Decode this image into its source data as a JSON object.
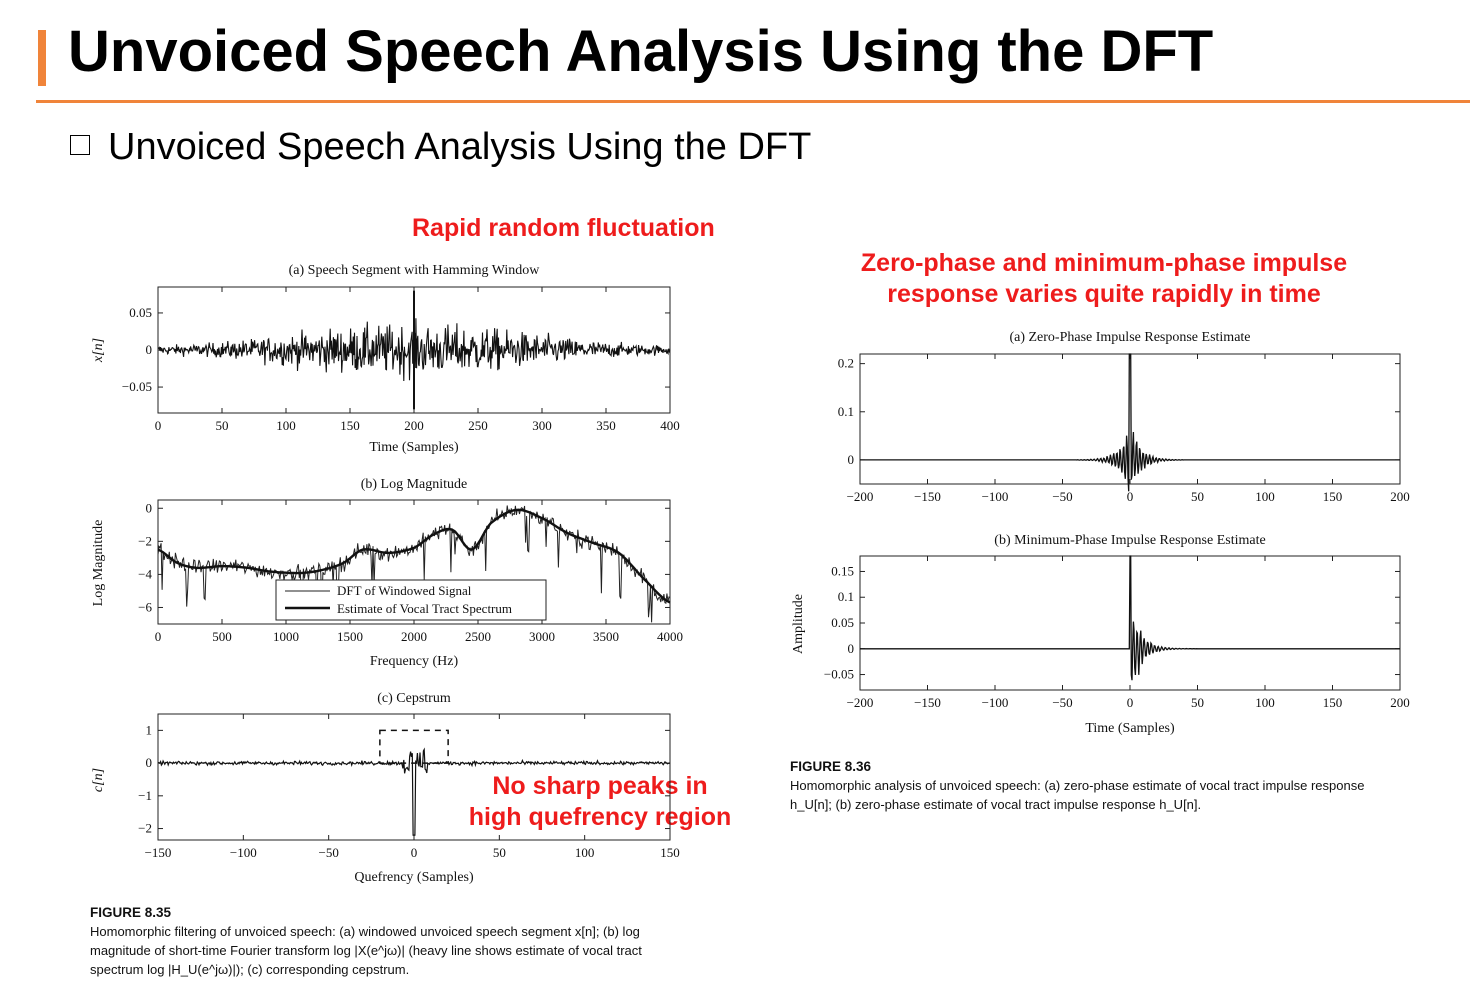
{
  "header": {
    "title": "Unvoiced Speech Analysis Using the DFT",
    "accent_color": "#f0843a"
  },
  "bullet": {
    "icon": "square-bullet-icon",
    "text": "Unvoiced Speech Analysis Using the DFT"
  },
  "annotations": {
    "color": "#ee1c1c",
    "rapid": "Rapid random fluctuation",
    "phase_line1": "Zero-phase and minimum-phase impulse",
    "phase_line2": "response varies quite rapidly in time",
    "peaks_line1": "No sharp peaks in",
    "peaks_line2": "high quefrency region"
  },
  "figure835": {
    "label": "FIGURE 8.35",
    "caption": "Homomorphic filtering of unvoiced speech: (a) windowed unvoiced speech segment x[n]; (b) log magnitude of short-time Fourier transform log |X(e^jω)| (heavy line shows estimate of vocal tract spectrum log |H_U(e^jω)|); (c) corresponding cepstrum."
  },
  "figure836": {
    "label": "FIGURE 8.36",
    "caption": "Homomorphic analysis of unvoiced speech: (a) zero-phase estimate of vocal tract impulse response h_U[n]; (b) zero-phase estimate of vocal tract impulse response h_U[n]."
  },
  "chart_data": [
    {
      "id": "speech-segment",
      "type": "line",
      "title": "(a) Speech Segment with Hamming Window",
      "xlabel": "Time (Samples)",
      "ylabel": "x[n]",
      "xlim": [
        0,
        400
      ],
      "ylim": [
        -0.085,
        0.085
      ],
      "xticks": [
        0,
        50,
        100,
        150,
        200,
        250,
        300,
        350,
        400
      ],
      "yticks": [
        0.05,
        0,
        -0.05
      ],
      "yticklabels": [
        "0.05",
        "0",
        "−0.05"
      ],
      "envelope_peak_x": 200,
      "envelope_peak_y": 0.08,
      "description_values": "noise-like windowed signal, amplitude largest near n=200"
    },
    {
      "id": "log-magnitude",
      "type": "line",
      "title": "(b) Log Magnitude",
      "xlabel": "Frequency (Hz)",
      "ylabel": "Log Magnitude",
      "xlim": [
        0,
        4000
      ],
      "ylim": [
        -7,
        0.5
      ],
      "xticks": [
        0,
        500,
        1000,
        1500,
        2000,
        2500,
        3000,
        3500,
        4000
      ],
      "yticks": [
        0,
        -2,
        -4,
        -6
      ],
      "yticklabels": [
        "0",
        "−2",
        "−4",
        "−6"
      ],
      "legend": [
        "DFT of Windowed Signal",
        "Estimate of Vocal Tract Spectrum"
      ],
      "legend_position": "bottom-center",
      "series": [
        {
          "name": "Estimate of Vocal Tract Spectrum",
          "x": [
            0,
            150,
            300,
            500,
            700,
            850,
            1000,
            1150,
            1300,
            1450,
            1600,
            1800,
            2000,
            2150,
            2300,
            2450,
            2600,
            2800,
            3000,
            3200,
            3400,
            3600,
            3800,
            4000
          ],
          "y": [
            -2.5,
            -3.3,
            -3.6,
            -3.5,
            -3.6,
            -3.8,
            -3.9,
            -3.9,
            -3.7,
            -3.3,
            -2.5,
            -2.7,
            -2.4,
            -1.6,
            -1.3,
            -2.5,
            -0.9,
            -0.1,
            -0.6,
            -1.5,
            -2.1,
            -2.7,
            -4.3,
            -5.7
          ]
        }
      ]
    },
    {
      "id": "cepstrum",
      "type": "line",
      "title": "(c) Cepstrum",
      "xlabel": "Quefrency (Samples)",
      "ylabel": "c[n]",
      "xlim": [
        -150,
        150
      ],
      "ylim": [
        -2.35,
        1.5
      ],
      "xticks": [
        -150,
        -100,
        -50,
        0,
        50,
        100,
        150
      ],
      "xticklabels": [
        "−150",
        "−100",
        "−50",
        "0",
        "50",
        "100",
        "150"
      ],
      "yticks": [
        1,
        0,
        -1,
        -2
      ],
      "yticklabels": [
        "1",
        "0",
        "−1",
        "−2"
      ],
      "peak_value_at_zero": -2.2,
      "dashed_box_x": [
        -20,
        20
      ],
      "dashed_box_y": [
        0,
        1
      ]
    },
    {
      "id": "zero-phase",
      "type": "line",
      "title": "(a) Zero-Phase Impulse Response Estimate",
      "xlim": [
        -200,
        200
      ],
      "ylim": [
        -0.05,
        0.22
      ],
      "xticks": [
        -200,
        -150,
        -100,
        -50,
        0,
        50,
        100,
        150,
        200
      ],
      "xticklabels": [
        "−200",
        "−150",
        "−100",
        "−50",
        "0",
        "50",
        "100",
        "150",
        "200"
      ],
      "yticks": [
        0.2,
        0.1,
        0
      ],
      "yticklabels": [
        "0.2",
        "0.1",
        "0"
      ],
      "peak_value_at_zero": 0.22,
      "nonzero_support": [
        -40,
        40
      ]
    },
    {
      "id": "min-phase",
      "type": "line",
      "title": "(b) Minimum-Phase Impulse Response Estimate",
      "xlabel": "Time (Samples)",
      "ylabel": "Amplitude",
      "xlim": [
        -200,
        200
      ],
      "ylim": [
        -0.08,
        0.18
      ],
      "xticks": [
        -200,
        -150,
        -100,
        -50,
        0,
        50,
        100,
        150,
        200
      ],
      "xticklabels": [
        "−200",
        "−150",
        "−100",
        "−50",
        "0",
        "50",
        "100",
        "150",
        "200"
      ],
      "yticks": [
        0.15,
        0.1,
        0.05,
        0,
        -0.05
      ],
      "yticklabels": [
        "0.15",
        "0.1",
        "0.05",
        "0",
        "−0.05"
      ],
      "peak_value_at_zero": 0.18,
      "nonzero_support": [
        0,
        50
      ]
    }
  ]
}
